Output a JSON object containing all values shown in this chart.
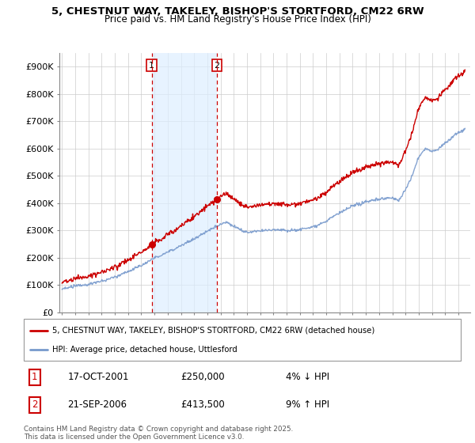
{
  "title1": "5, CHESTNUT WAY, TAKELEY, BISHOP'S STORTFORD, CM22 6RW",
  "title2": "Price paid vs. HM Land Registry's House Price Index (HPI)",
  "legend_line1": "5, CHESTNUT WAY, TAKELEY, BISHOP'S STORTFORD, CM22 6RW (detached house)",
  "legend_line2": "HPI: Average price, detached house, Uttlesford",
  "sale1_date": "17-OCT-2001",
  "sale1_price": 250000,
  "sale1_pct": "4% ↓ HPI",
  "sale2_date": "21-SEP-2006",
  "sale2_price": 413500,
  "sale2_pct": "9% ↑ HPI",
  "footer": "Contains HM Land Registry data © Crown copyright and database right 2025.\nThis data is licensed under the Open Government Licence v3.0.",
  "red_color": "#cc0000",
  "blue_color": "#7799cc",
  "shade_color": "#ddeeff",
  "ylim": [
    0,
    950000
  ],
  "yticks": [
    0,
    100000,
    200000,
    300000,
    400000,
    500000,
    600000,
    700000,
    800000,
    900000
  ],
  "ytick_labels": [
    "£0",
    "£100K",
    "£200K",
    "£300K",
    "£400K",
    "£500K",
    "£600K",
    "£700K",
    "£800K",
    "£900K"
  ],
  "sale1_x": 2001.79,
  "sale2_x": 2006.72,
  "xmin": 1994.8,
  "xmax": 2025.9
}
